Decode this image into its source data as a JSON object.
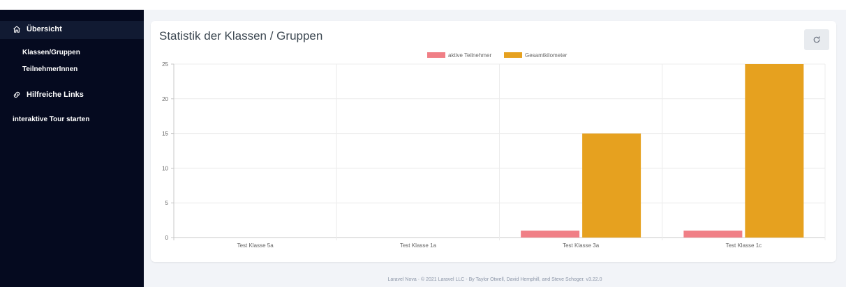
{
  "sidebar": {
    "overview_label": "Übersicht",
    "items": [
      {
        "label": "Klassen/Gruppen"
      },
      {
        "label": "TeilnehmerInnen"
      }
    ],
    "links_label": "Hilfreiche Links",
    "tour_label": "interaktive Tour starten"
  },
  "card": {
    "title": "Statistik der Klassen / Gruppen"
  },
  "chart_data": {
    "type": "bar",
    "categories": [
      "Test Klasse 5a",
      "Test Klasse 1a",
      "Test Klasse 3a",
      "Test Klasse 1c"
    ],
    "series": [
      {
        "name": "aktive Teilnehmer",
        "values": [
          0,
          0,
          1,
          1
        ],
        "color": "#f07f86"
      },
      {
        "name": "Gesamtkilometer",
        "values": [
          0,
          0,
          15,
          25
        ],
        "color": "#e6a11f"
      }
    ],
    "ylim": [
      0,
      25
    ],
    "yticks": [
      0,
      5,
      10,
      15,
      20,
      25
    ],
    "grid": true,
    "legend": "top-center"
  },
  "footer": {
    "text": "Laravel Nova · © 2021 Laravel LLC - By Taylor Otwell, David Hemphill, and Steve Schoger. v3.22.0"
  }
}
